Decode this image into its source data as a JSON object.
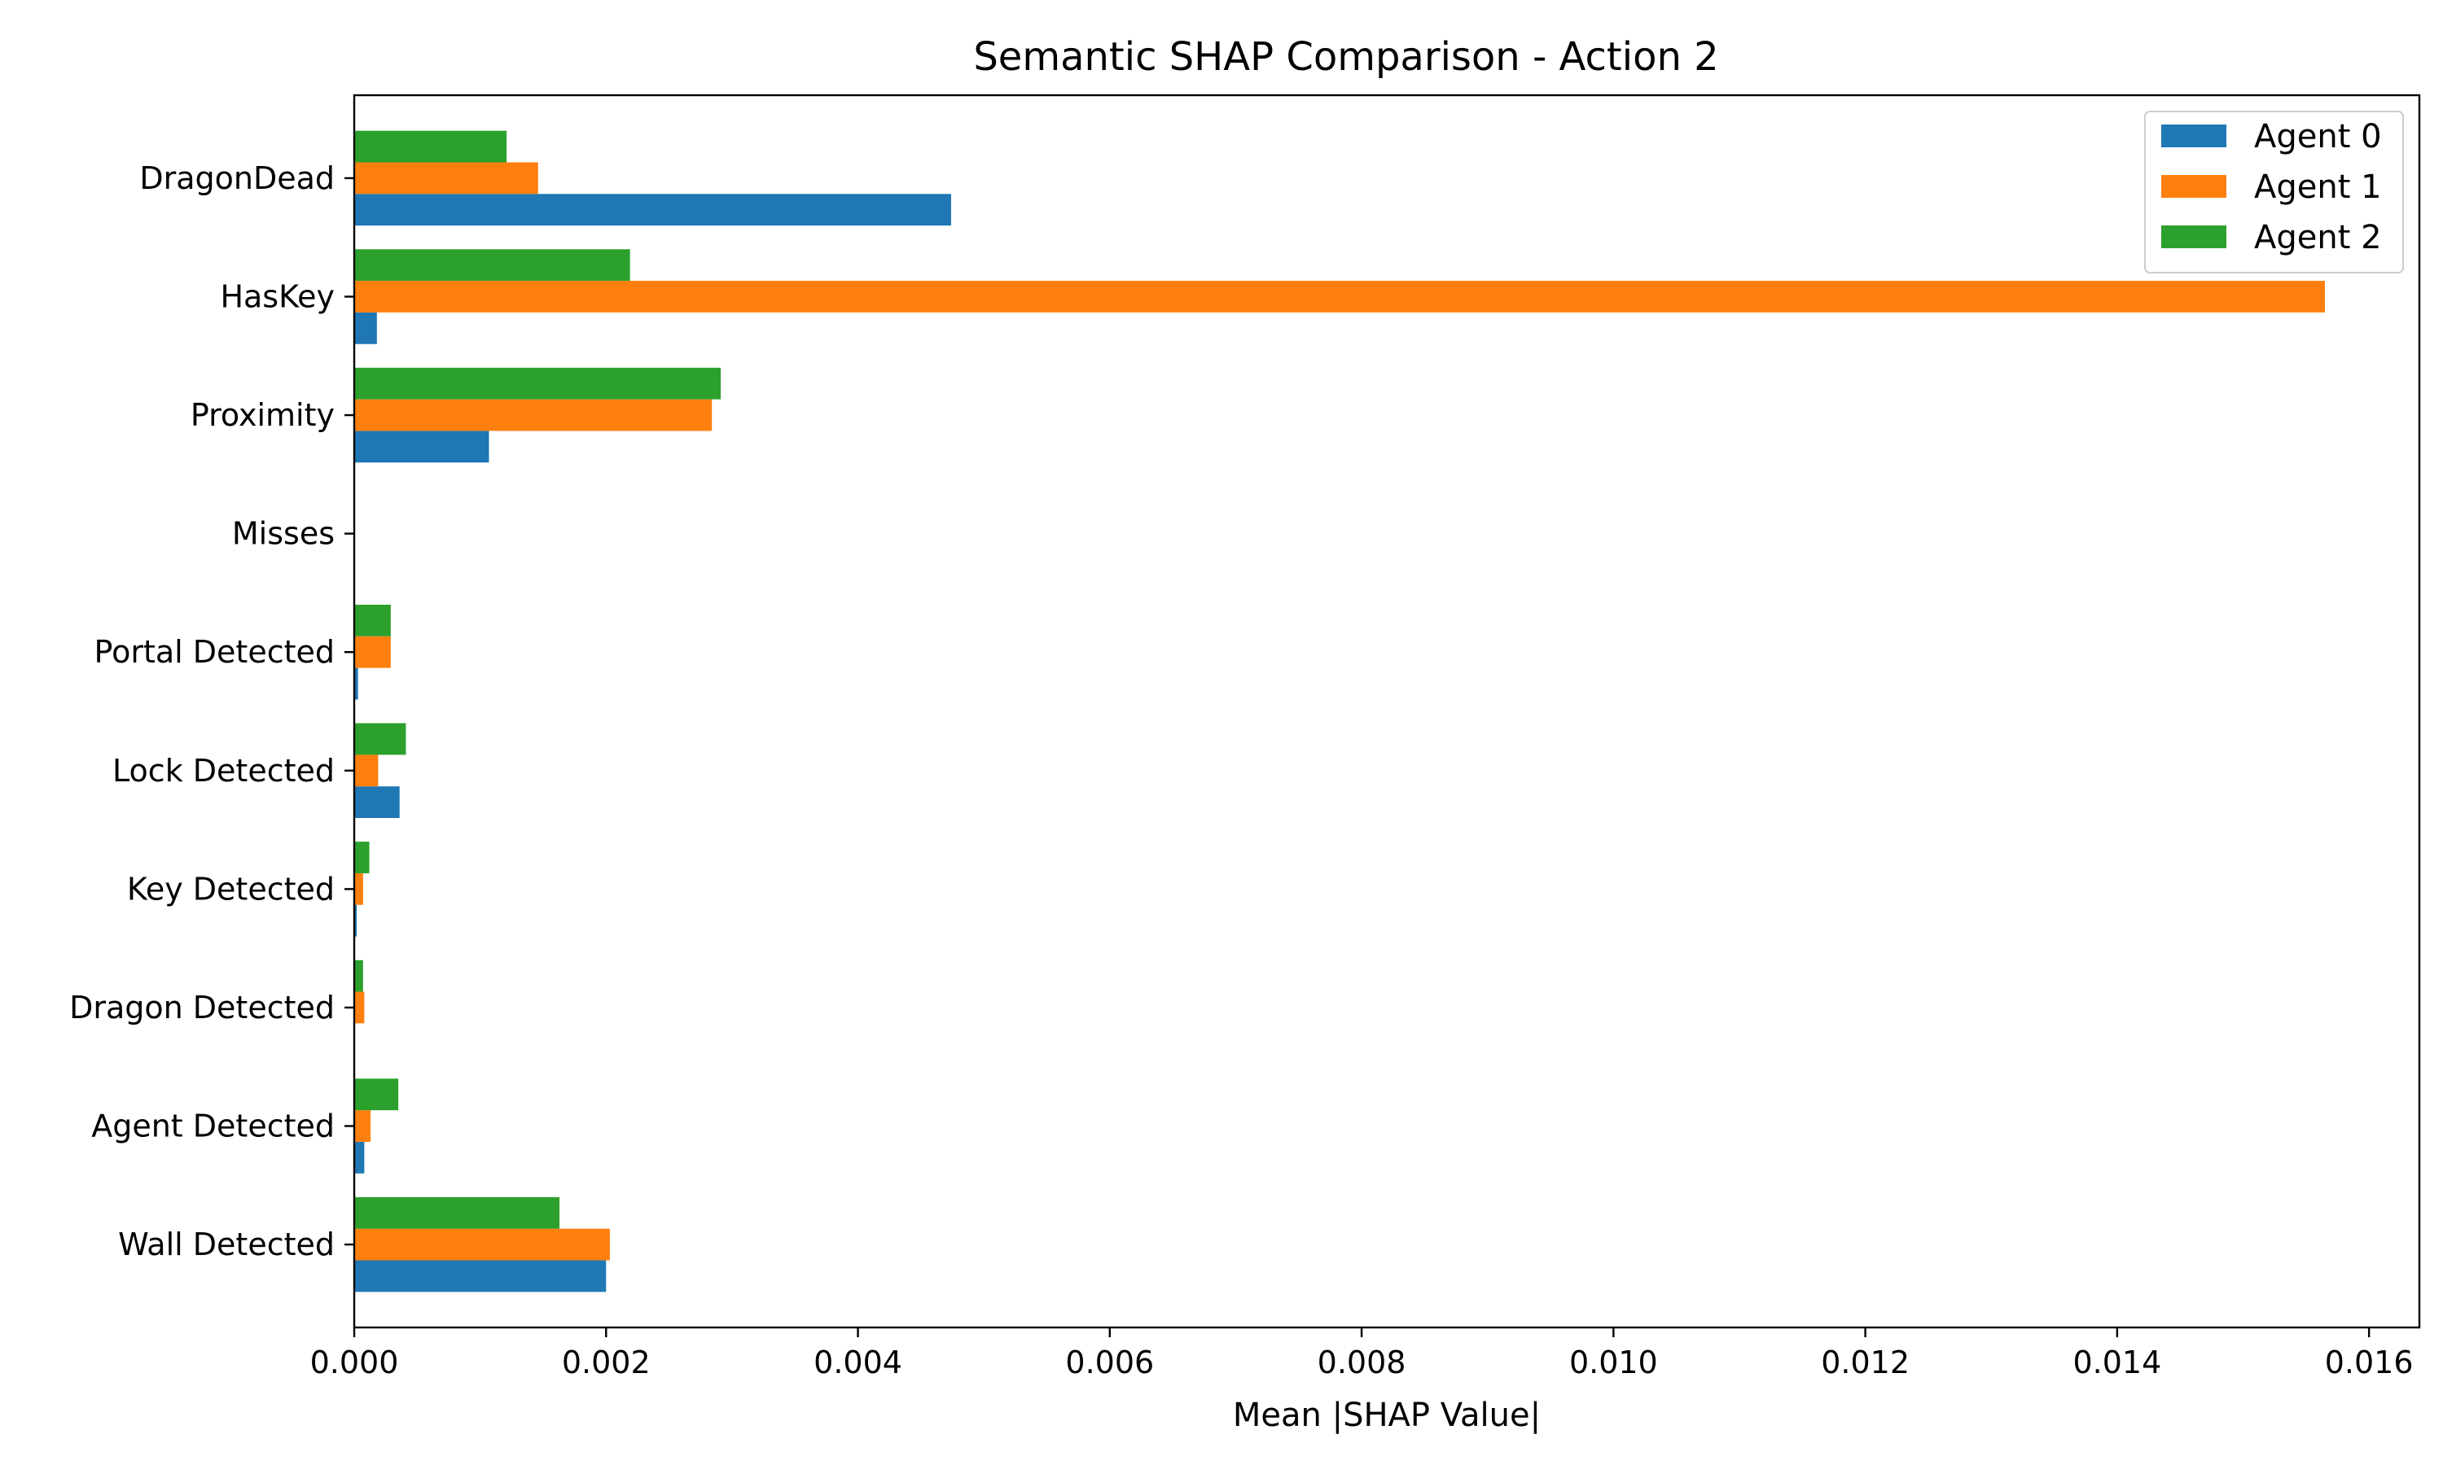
{
  "chart_data": {
    "type": "bar",
    "orientation": "horizontal",
    "title": "Semantic SHAP Comparison - Action 2",
    "xlabel": "Mean |SHAP Value|",
    "ylabel": "",
    "xlim": [
      0,
      0.0164
    ],
    "xticks": [
      0.0,
      0.002,
      0.004,
      0.006,
      0.008,
      0.01,
      0.012,
      0.014,
      0.016
    ],
    "xtick_labels": [
      "0.000",
      "0.002",
      "0.004",
      "0.006",
      "0.008",
      "0.010",
      "0.012",
      "0.014",
      "0.016"
    ],
    "grid": false,
    "legend_position": "top-right",
    "categories": [
      "DragonDead",
      "HasKey",
      "Proximity",
      "Misses",
      "Portal Detected",
      "Lock Detected",
      "Key Detected",
      "Dragon Detected",
      "Agent Detected",
      "Wall Detected"
    ],
    "series": [
      {
        "name": "Agent 0",
        "color": "#1f77b4",
        "values": [
          0.00474,
          0.00018,
          0.00107,
          0.0,
          3e-05,
          0.00036,
          2e-05,
          0.0,
          8e-05,
          0.002
        ]
      },
      {
        "name": "Agent 1",
        "color": "#ff7f0e",
        "values": [
          0.00146,
          0.01565,
          0.00284,
          0.0,
          0.00029,
          0.00019,
          7e-05,
          8e-05,
          0.00013,
          0.00203
        ]
      },
      {
        "name": "Agent 2",
        "color": "#2ca02c",
        "values": [
          0.00121,
          0.00219,
          0.00291,
          0.0,
          0.00029,
          0.00041,
          0.00012,
          7e-05,
          0.00035,
          0.00163
        ]
      }
    ]
  }
}
